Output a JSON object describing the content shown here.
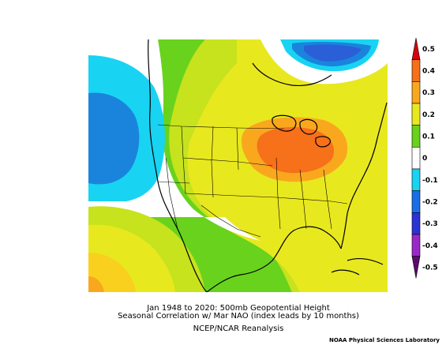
{
  "titles": {
    "line1": "Jan 1948 to 2020: 500mb Geopotential Height",
    "line2": "Seasonal Correlation w/ Mar NAO (index leads by 10 months)",
    "line3": "NCEP/NCAR Reanalysis"
  },
  "credit": "NOAA Physical Sciences Laboratory",
  "colorbar": {
    "levels": [
      {
        "label": "0.5",
        "color": "#d7000c"
      },
      {
        "label": "0.4",
        "color": "#f7701a"
      },
      {
        "label": "0.3",
        "color": "#f9a81e"
      },
      {
        "label": "0.2",
        "color": "#e8e81f"
      },
      {
        "label": "0.1",
        "color": "#69d21d"
      },
      {
        "label": "0",
        "color": "#ffffff"
      },
      {
        "label": "-0.1",
        "color": "#19d3f2"
      },
      {
        "label": "-0.2",
        "color": "#1a6fe6"
      },
      {
        "label": "-0.3",
        "color": "#2b33d4"
      },
      {
        "label": "-0.4",
        "color": "#9a28c8"
      },
      {
        "label": "-0.5",
        "color": "#5c0a6e"
      }
    ]
  },
  "fill_colors": {
    "strong_negative": "#2a5fd8",
    "negative": "#1a84dc",
    "weak_negative": "#19d3f2",
    "zero": "#ffffff",
    "weak_positive": "#69d21d",
    "positive": "#c6e31d",
    "moderate_positive": "#e8e81f",
    "strong_positive": "#f9a81e",
    "peak_positive": "#f7701a"
  }
}
